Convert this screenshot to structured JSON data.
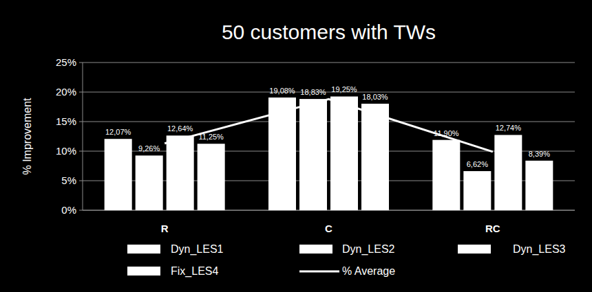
{
  "chart_data": {
    "type": "bar",
    "title": "50 customers with TWs",
    "y_label": "% Improvement",
    "categories": [
      "R",
      "C",
      "RC"
    ],
    "series": [
      {
        "name": "Dyn_LES1",
        "color": "#ffffff",
        "values": [
          12.07,
          19.08,
          11.9
        ],
        "value_labels": [
          "12,07%",
          "19,08%",
          "11,90%"
        ]
      },
      {
        "name": "Dyn_LES2",
        "color": "#ffffff",
        "values": [
          9.26,
          18.83,
          6.62
        ],
        "value_labels": [
          "9,26%",
          "18,83%",
          "6,62%"
        ]
      },
      {
        "name": "Dyn_LES3",
        "color": "#ffffff",
        "values": [
          12.64,
          19.25,
          12.74
        ],
        "value_labels": [
          "12,64%",
          "19,25%",
          "12,74%"
        ]
      },
      {
        "name": "Fix_LES4",
        "color": "#ffffff",
        "values": [
          11.25,
          18.03,
          8.39
        ],
        "value_labels": [
          "11,25%",
          "18,03%",
          "8,39%"
        ]
      },
      {
        "name": "% Average",
        "type": "line",
        "color": "#ffffff",
        "values": [
          11.3,
          18.8,
          9.9
        ]
      }
    ],
    "ylim": [
      0,
      25
    ],
    "yticks": [
      {
        "value": 0,
        "label": "0%"
      },
      {
        "value": 5,
        "label": "5%"
      },
      {
        "value": 10,
        "label": "10%"
      },
      {
        "value": 15,
        "label": "15%"
      },
      {
        "value": 20,
        "label": "20%"
      },
      {
        "value": 25,
        "label": "25%"
      }
    ],
    "grid": true,
    "data_labels": true,
    "legend": "bottom"
  }
}
